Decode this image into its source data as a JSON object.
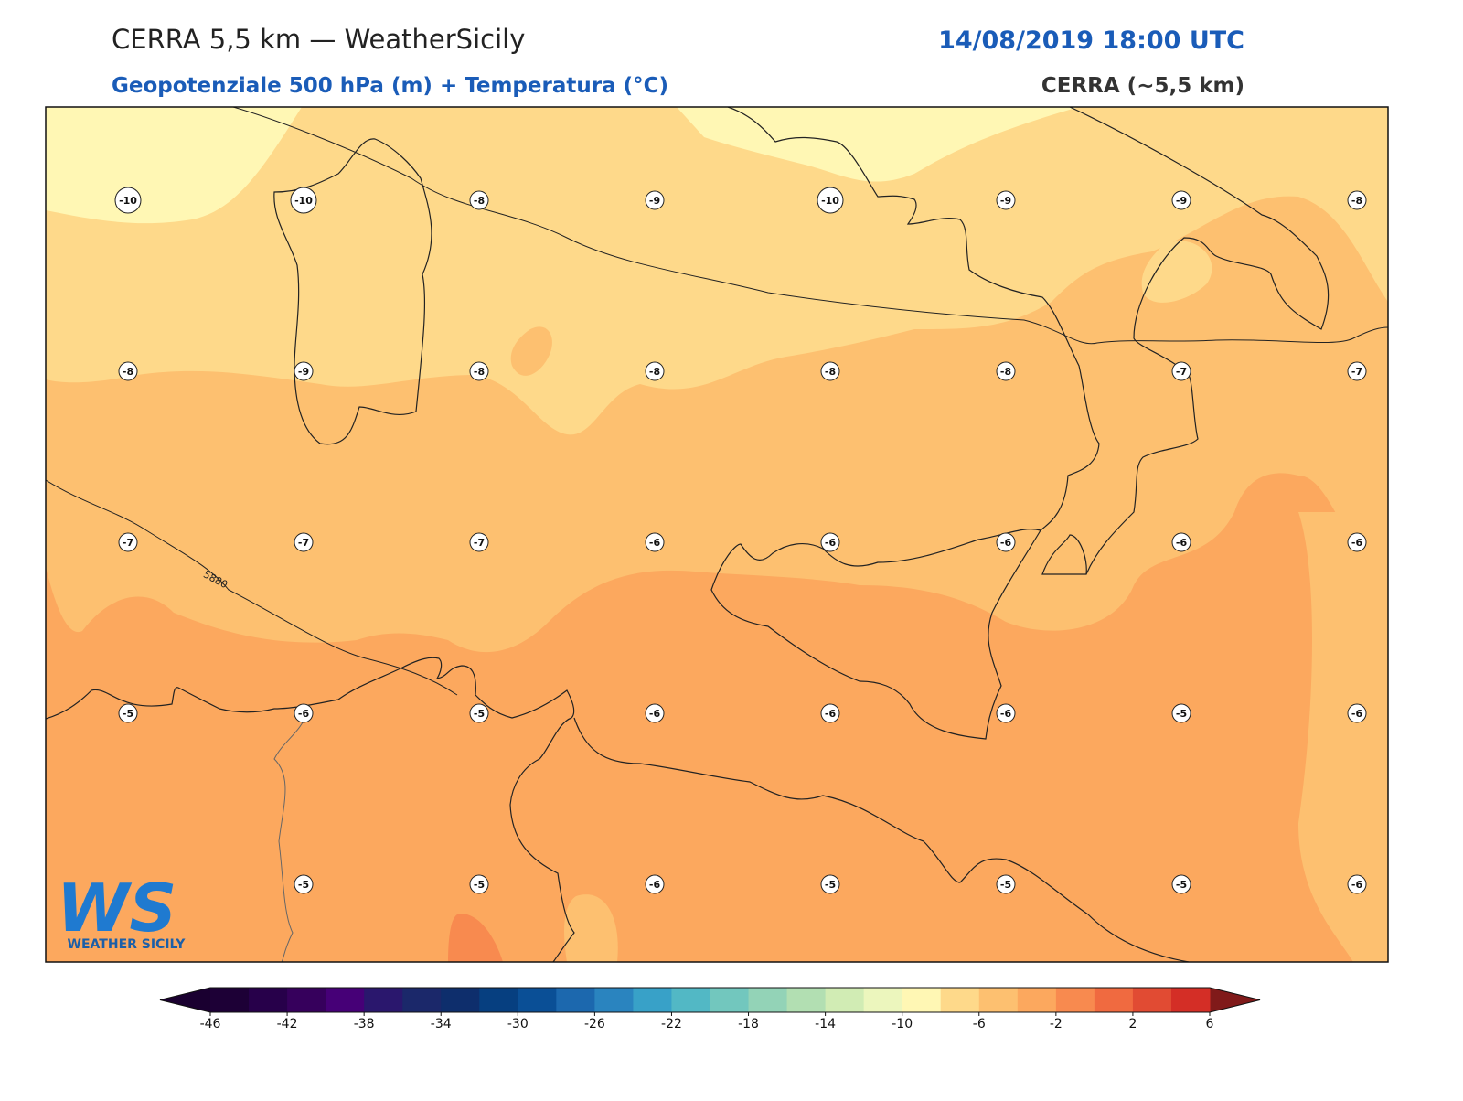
{
  "header": {
    "title": "CERRA 5,5 km — WeatherSicily",
    "datetime": "14/08/2019 18:00 UTC",
    "subtitle": "Geopotenziale 500 hPa (m) + Temperatura (°C)",
    "model": "CERRA (~5,5 km)"
  },
  "map": {
    "temperature_labels": [
      [
        "-10",
        "-10",
        "-8",
        "-9",
        "-10",
        "-9",
        "-9",
        "-8"
      ],
      [
        "-8",
        "-9",
        "-8",
        "-8",
        "-8",
        "-8",
        "-7",
        "-7"
      ],
      [
        "-7",
        "-7",
        "-7",
        "-6",
        "-6",
        "-6",
        "-6",
        "-6"
      ],
      [
        "-5",
        "-6",
        "-5",
        "-6",
        "-6",
        "-6",
        "-5",
        "-6"
      ],
      [
        null,
        "-5",
        "-5",
        "-6",
        "-5",
        "-5",
        "-5",
        "-6"
      ]
    ],
    "contour_label": "5880"
  },
  "logo": {
    "letters": "WS",
    "name": "WEATHER SICILY"
  },
  "colorbar": {
    "range": [
      -46,
      6
    ],
    "ticks": [
      -46,
      -42,
      -38,
      -34,
      -30,
      -26,
      -22,
      -18,
      -14,
      -10,
      -6,
      -2,
      2,
      6
    ],
    "colors": [
      "#1d0036",
      "#27004a",
      "#36005c",
      "#460077",
      "#2a176d",
      "#1b286a",
      "#0e2e6c",
      "#063f80",
      "#0a4f96",
      "#1c68ae",
      "#2a84bf",
      "#38a1c8",
      "#52b8c5",
      "#72c7be",
      "#93d3b7",
      "#b2dfb2",
      "#d1ecb4",
      "#ecf6bd",
      "#fff7b4",
      "#fed98a",
      "#fdc070",
      "#fca85e",
      "#f88a4f",
      "#f06a40",
      "#e14b33",
      "#d42e26"
    ],
    "under_color": "#1a0030",
    "over_color": "#801a1a"
  }
}
